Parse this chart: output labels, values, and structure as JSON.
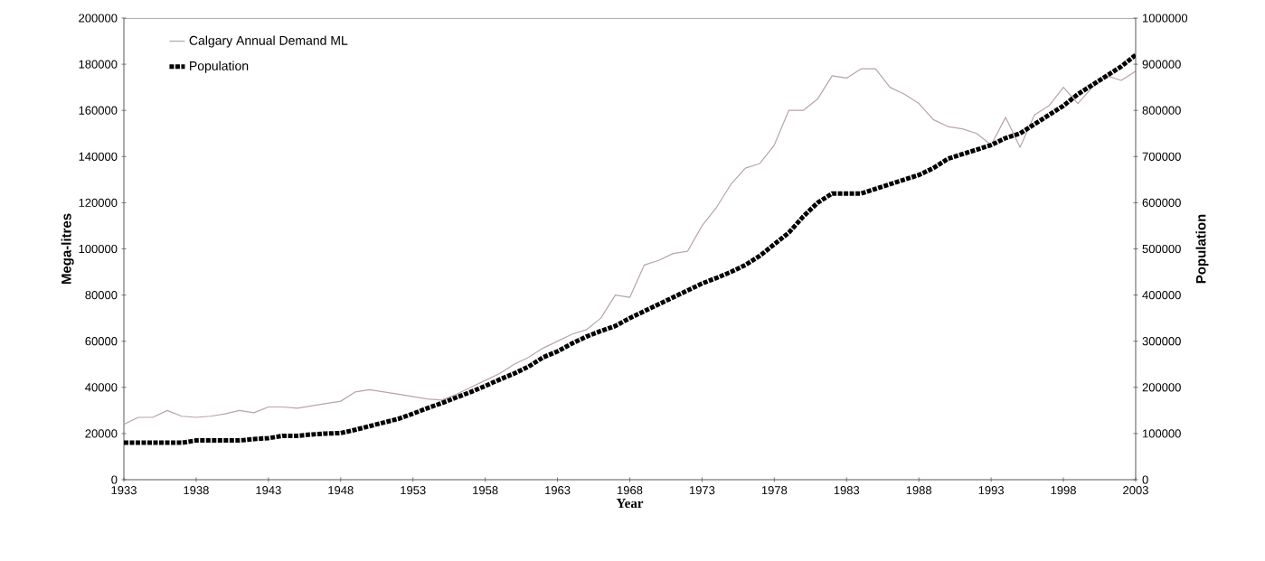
{
  "chart_data": {
    "type": "line",
    "xlabel": "Year",
    "ylabel": "Mega-litres",
    "y2label": "Population",
    "x": [
      1933,
      1934,
      1935,
      1936,
      1937,
      1938,
      1939,
      1940,
      1941,
      1942,
      1943,
      1944,
      1945,
      1946,
      1947,
      1948,
      1949,
      1950,
      1951,
      1952,
      1953,
      1954,
      1955,
      1956,
      1957,
      1958,
      1959,
      1960,
      1961,
      1962,
      1963,
      1964,
      1965,
      1966,
      1967,
      1968,
      1969,
      1970,
      1971,
      1972,
      1973,
      1974,
      1975,
      1976,
      1977,
      1978,
      1979,
      1980,
      1981,
      1982,
      1983,
      1984,
      1985,
      1986,
      1987,
      1988,
      1989,
      1990,
      1991,
      1992,
      1993,
      1994,
      1995,
      1996,
      1997,
      1998,
      1999,
      2000,
      2001,
      2002,
      2003
    ],
    "series": [
      {
        "name": "Calgary Annual Demand  ML",
        "color": "#b8a4aa",
        "line_style": "solid",
        "values": [
          24000,
          27000,
          27000,
          30000,
          27500,
          27000,
          27500,
          28500,
          30000,
          29000,
          31500,
          31500,
          31000,
          32000,
          33000,
          34000,
          38000,
          39000,
          38000,
          37000,
          36000,
          35000,
          34500,
          37000,
          40000,
          43000,
          46000,
          50000,
          53000,
          57000,
          60000,
          63000,
          65000,
          70000,
          80000,
          79000,
          93000,
          95000,
          98000,
          99000,
          110000,
          118000,
          128000,
          135000,
          137000,
          145000,
          160000,
          160000,
          165000,
          175000,
          174000,
          178000,
          178000,
          170000,
          167000,
          163000,
          156000,
          153000,
          152000,
          150000,
          145000,
          157000,
          144000,
          158000,
          162000,
          170000,
          163000,
          170000,
          175000,
          173000,
          177000
        ]
      },
      {
        "name": "Population",
        "color": "#000000",
        "axis": "y2",
        "line_style": "dotted",
        "values": [
          80000,
          80000,
          80000,
          80000,
          80000,
          85000,
          85000,
          85000,
          85000,
          88000,
          90000,
          95000,
          95000,
          98000,
          100000,
          101000,
          108000,
          116000,
          124000,
          132000,
          143000,
          155000,
          166000,
          178000,
          190000,
          203000,
          217000,
          230000,
          245000,
          265000,
          278000,
          295000,
          310000,
          322000,
          333000,
          350000,
          365000,
          380000,
          395000,
          410000,
          425000,
          437000,
          450000,
          465000,
          485000,
          510000,
          535000,
          570000,
          600000,
          620000,
          620000,
          620000,
          630000,
          640000,
          650000,
          660000,
          675000,
          695000,
          705000,
          715000,
          725000,
          740000,
          750000,
          770000,
          790000,
          810000,
          835000,
          855000,
          875000,
          895000,
          920000
        ]
      }
    ],
    "xlim": [
      1933,
      2003
    ],
    "xticks": [
      1933,
      1938,
      1943,
      1948,
      1953,
      1958,
      1963,
      1968,
      1973,
      1978,
      1983,
      1988,
      1993,
      1998,
      2003
    ],
    "ylim": [
      0,
      200000
    ],
    "yticks": [
      0,
      20000,
      40000,
      60000,
      80000,
      100000,
      120000,
      140000,
      160000,
      180000,
      200000
    ],
    "y2lim": [
      0,
      1000000
    ],
    "y2ticks": [
      0,
      100000,
      200000,
      300000,
      400000,
      500000,
      600000,
      700000,
      800000,
      900000,
      1000000
    ],
    "legend": "top left",
    "grid": false,
    "marker": "none"
  }
}
